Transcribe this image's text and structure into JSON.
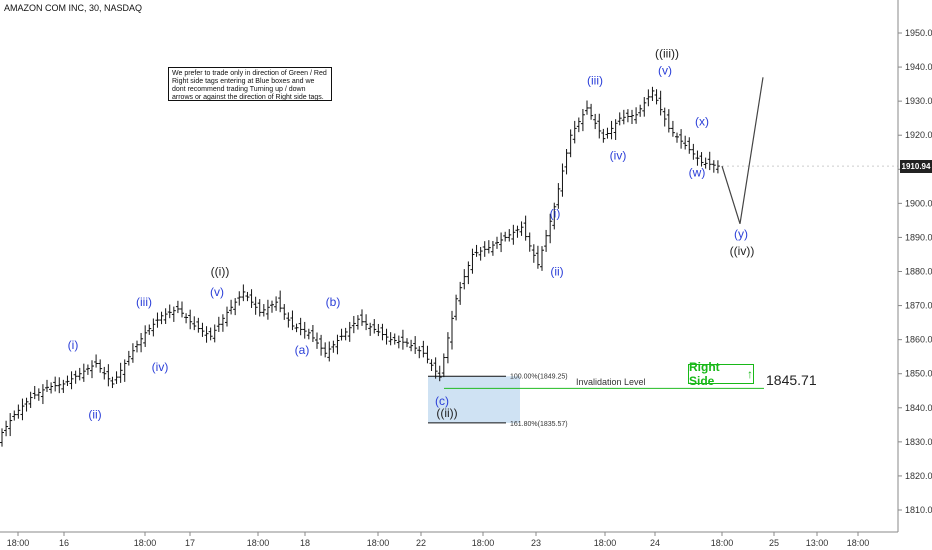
{
  "title": "AMAZON COM INC, 30, NASDAQ",
  "notice": "We prefer to trade only in direction of Green / Red Right side tags entering at Blue boxes and we dont recommend trading Turning up / down arrows or against the direction of Right side tags.",
  "current_price": "1910.94",
  "invalidation": {
    "label": "Invalidation Level",
    "value": "1845.71"
  },
  "right_side_tag": {
    "label": "Right Side",
    "arrow": "↑",
    "color": "#18b818"
  },
  "colors": {
    "blue_box": "#cfe2f3",
    "invalidation_line": "#22bb22",
    "wave_blue": "#2b3fd8",
    "bars": "#111111",
    "projection": "#444444"
  },
  "fib": {
    "top_label": "100.00%(1849.25)",
    "bottom_label": "161.80%(1835.57)",
    "top": 1849.25,
    "bottom": 1835.57
  },
  "chart_data": {
    "type": "ohlc",
    "title": "AMAZON COM INC, 30, NASDAQ",
    "ylim": [
      1806,
      1958
    ],
    "y_ticks": [
      "1810.00",
      "1820.00",
      "1830.00",
      "1840.00",
      "1850.00",
      "1860.00",
      "1870.00",
      "1880.00",
      "1890.00",
      "1900.00",
      "1910.00",
      "1920.00",
      "1930.00",
      "1940.00",
      "1950.00"
    ],
    "x_ticks": [
      "18:00",
      "16",
      "18:00",
      "17",
      "18:00",
      "18",
      "18:00",
      "22",
      "18:00",
      "23",
      "18:00",
      "24",
      "18:00",
      "25",
      "13:00",
      "18:00"
    ],
    "price_path": [
      [
        "1",
        1831
      ],
      [
        "2",
        1838
      ],
      [
        "3",
        1843
      ],
      [
        "4",
        1846
      ],
      [
        "5",
        1847
      ],
      [
        "6",
        1850
      ],
      [
        "7",
        1853
      ],
      [
        "8",
        1847
      ],
      [
        "9",
        1855
      ],
      [
        "10",
        1862
      ],
      [
        "11",
        1867
      ],
      [
        "12",
        1869
      ],
      [
        "13",
        1864
      ],
      [
        "14",
        1861
      ],
      [
        "15",
        1868
      ],
      [
        "16",
        1874
      ],
      [
        "17",
        1868
      ],
      [
        "18",
        1871
      ],
      [
        "19",
        1864
      ],
      [
        "20",
        1862
      ],
      [
        "21",
        1856
      ],
      [
        "22",
        1861
      ],
      [
        "23",
        1866
      ],
      [
        "24",
        1863
      ],
      [
        "25",
        1860
      ],
      [
        "26",
        1859
      ],
      [
        "27",
        1856
      ],
      [
        "28",
        1849
      ],
      [
        "29",
        1872
      ],
      [
        "30",
        1885
      ],
      [
        "31",
        1887
      ],
      [
        "32",
        1890
      ],
      [
        "33",
        1893
      ],
      [
        "34",
        1882
      ],
      [
        "35",
        1899
      ],
      [
        "36",
        1920
      ],
      [
        "37",
        1928
      ],
      [
        "38",
        1919
      ],
      [
        "39",
        1925
      ],
      [
        "40",
        1926
      ],
      [
        "41",
        1933
      ],
      [
        "42",
        1922
      ],
      [
        "43",
        1917
      ],
      [
        "44",
        1912
      ],
      [
        "45",
        1910.94
      ]
    ],
    "projection": [
      [
        "45",
        1910.94
      ],
      [
        "y",
        1894
      ],
      [
        "end",
        1937
      ]
    ],
    "wave_labels": [
      {
        "text": "(i)",
        "color": "blue",
        "price": 1858.5
      },
      {
        "text": "(ii)",
        "color": "blue",
        "price": 1838
      },
      {
        "text": "(iii)",
        "color": "blue",
        "price": 1871
      },
      {
        "text": "(iv)",
        "color": "blue",
        "price": 1852
      },
      {
        "text": "(v)",
        "color": "blue",
        "price": 1874
      },
      {
        "text": "((i))",
        "color": "black",
        "price": 1880
      },
      {
        "text": "(a)",
        "color": "blue",
        "price": 1857
      },
      {
        "text": "(b)",
        "color": "blue",
        "price": 1871
      },
      {
        "text": "(c)",
        "color": "blue",
        "price": 1842
      },
      {
        "text": "((ii))",
        "color": "black",
        "price": 1838.5
      },
      {
        "text": "(i)",
        "color": "blue",
        "price": 1897
      },
      {
        "text": "(ii)",
        "color": "blue",
        "price": 1880
      },
      {
        "text": "(iii)",
        "color": "blue",
        "price": 1936
      },
      {
        "text": "(iv)",
        "color": "blue",
        "price": 1914
      },
      {
        "text": "(v)",
        "color": "blue",
        "price": 1939
      },
      {
        "text": "((iii))",
        "color": "black",
        "price": 1944
      },
      {
        "text": "(x)",
        "color": "blue",
        "price": 1924
      },
      {
        "text": "(w)",
        "color": "blue",
        "price": 1909
      },
      {
        "text": "(y)",
        "color": "blue",
        "price": 1891
      },
      {
        "text": "((iv))",
        "color": "black",
        "price": 1886
      }
    ]
  }
}
